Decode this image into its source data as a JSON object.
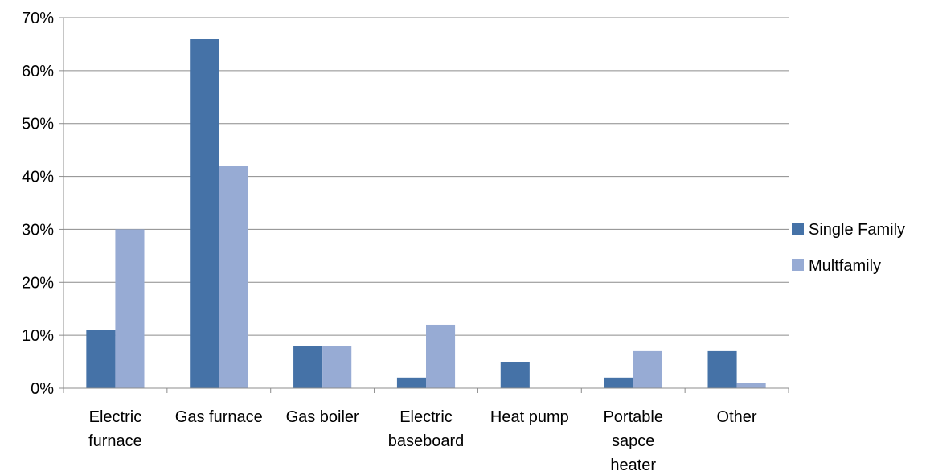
{
  "chart_data": {
    "type": "bar",
    "title": "",
    "xlabel": "",
    "ylabel": "",
    "categories": [
      [
        "Electric",
        "furnace"
      ],
      [
        "Gas furnace"
      ],
      [
        "Gas boiler"
      ],
      [
        "Electric",
        "baseboard"
      ],
      [
        "Heat pump"
      ],
      [
        "Portable",
        "sapce",
        "heater"
      ],
      [
        "Other"
      ]
    ],
    "series": [
      {
        "name": "Single Family",
        "color": "#4572A7",
        "values": [
          11,
          66,
          8,
          2,
          5,
          2,
          7
        ]
      },
      {
        "name": "Multfamily",
        "color": "#97ABD4",
        "values": [
          30,
          42,
          8,
          12,
          0,
          7,
          1
        ]
      }
    ],
    "yticks": [
      "0%",
      "10%",
      "20%",
      "30%",
      "40%",
      "50%",
      "60%",
      "70%"
    ],
    "ylim": [
      0,
      70
    ],
    "grid": true,
    "legend_position": "right"
  }
}
